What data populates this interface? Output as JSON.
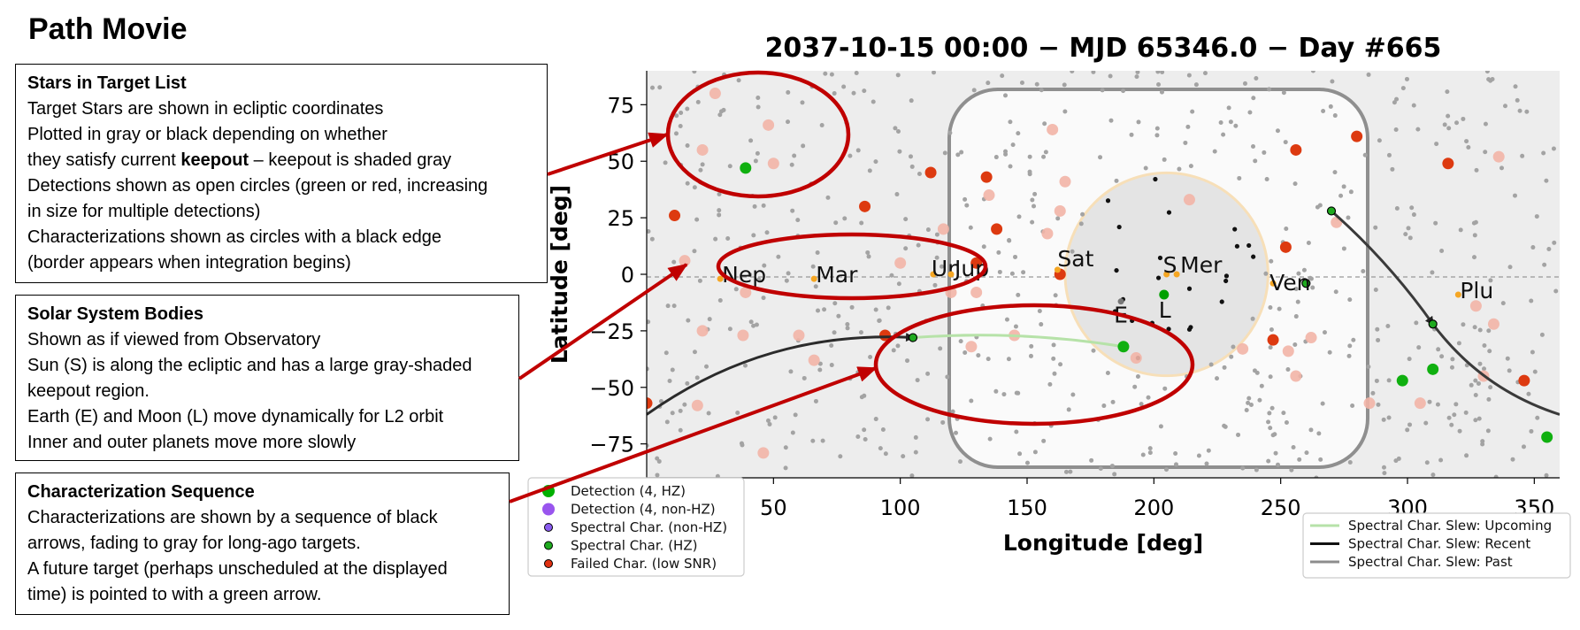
{
  "page": {
    "title": "Path Movie"
  },
  "callouts": {
    "stars": {
      "heading": "Stars in Target List",
      "line1": "Target Stars are shown in ecliptic coordinates",
      "line2": "Plotted in gray or black depending on whether",
      "line3_pre": "they satisfy current ",
      "line3_bold": "keepout",
      "line3_post": " – keepout is shaded gray",
      "line4": "Detections shown as open circles (green or red, increasing",
      "line5": "in size for multiple detections)",
      "line6": "Characterizations shown as circles with a black edge",
      "line7": "(border appears when integration begins)"
    },
    "solar": {
      "heading": "Solar System Bodies",
      "line1": "Shown as if viewed from Observatory",
      "line2": "Sun (S) is along the ecliptic and has a large gray-shaded",
      "line3": "keepout region.",
      "line4": "Earth (E) and Moon (L) move dynamically for L2 orbit",
      "line5": "Inner and outer planets move more slowly"
    },
    "sequence": {
      "heading": "Characterization Sequence",
      "line1": "Characterizations are shown by a sequence of black",
      "line2": "arrows, fading to gray for long-ago targets.",
      "line3": "A future target (perhaps unscheduled at the displayed",
      "line4": "time) is pointed to with a green arrow."
    }
  },
  "chart_data": {
    "type": "scatter",
    "title": "2037-10-15 00:00 − MJD 65346.0 − Day #665",
    "xlabel": "Longitude [deg]",
    "ylabel": "Latitude [deg]",
    "xlim": [
      0,
      360
    ],
    "ylim": [
      -90,
      90
    ],
    "xticks": [
      50,
      100,
      150,
      200,
      250,
      300,
      350
    ],
    "yticks": [
      75,
      50,
      25,
      0,
      -25,
      -50,
      -75
    ],
    "grid": false,
    "sun_keepout": {
      "center": [
        205,
        0
      ],
      "radius_deg": 40
    },
    "solar_bodies": [
      {
        "label": "Nep",
        "lon": 29,
        "lat": -2,
        "color": "#f5a623"
      },
      {
        "label": "Mar",
        "lon": 66,
        "lat": -2,
        "color": "#f5a623"
      },
      {
        "label": "Ur",
        "lon": 113,
        "lat": 0,
        "color": "#f5a623"
      },
      {
        "label": "Jup",
        "lon": 120,
        "lat": 0,
        "color": "#f5a623"
      },
      {
        "label": "Sat",
        "lon": 162,
        "lat": 2,
        "color": "#f5a623"
      },
      {
        "label": "S",
        "lon": 205,
        "lat": 0,
        "color": "#f5a623"
      },
      {
        "label": "Mer",
        "lon": 209,
        "lat": 0,
        "color": "#f5a623"
      },
      {
        "label": "Ven",
        "lon": 247,
        "lat": -4,
        "color": "#f5a623"
      },
      {
        "label": "Plu",
        "lon": 320,
        "lat": -9,
        "color": "#f5a623"
      },
      {
        "label": "E",
        "lon": 187,
        "lat": -12,
        "color": "#777777"
      },
      {
        "label": "L",
        "lon": 204,
        "lat": -9,
        "color": "#00a000"
      }
    ],
    "characterized_stars": [
      {
        "lon": 39,
        "lat": 47,
        "type": "Detection (4, HZ)"
      },
      {
        "lon": 188,
        "lat": -32,
        "type": "Detection (4, HZ)"
      },
      {
        "lon": 105,
        "lat": -28,
        "type": "Spectral Char. (HZ)"
      },
      {
        "lon": 270,
        "lat": 28,
        "type": "Spectral Char. (HZ)"
      },
      {
        "lon": 310,
        "lat": -22,
        "type": "Spectral Char. (HZ)"
      },
      {
        "lon": 298,
        "lat": -47,
        "type": "Detection (4, HZ)"
      },
      {
        "lon": 310,
        "lat": -42,
        "type": "Detection (4, HZ)"
      },
      {
        "lon": 355,
        "lat": -72,
        "type": "Detection (4, HZ)"
      },
      {
        "lon": 260,
        "lat": -4,
        "type": "Spectral Char. (HZ)"
      }
    ],
    "failed_chars": [
      [
        11,
        26
      ],
      [
        86,
        30
      ],
      [
        112,
        45
      ],
      [
        134,
        43
      ],
      [
        138,
        20
      ],
      [
        163,
        0
      ],
      [
        130,
        5
      ],
      [
        247,
        -29
      ],
      [
        252,
        12
      ],
      [
        256,
        55
      ],
      [
        280,
        61
      ],
      [
        316,
        49
      ],
      [
        346,
        -47
      ],
      [
        0,
        -57
      ],
      [
        94,
        -27
      ]
    ],
    "detections_faint": [
      [
        27,
        80
      ],
      [
        48,
        66
      ],
      [
        50,
        49
      ],
      [
        22,
        55
      ],
      [
        15,
        6
      ],
      [
        39,
        -8
      ],
      [
        22,
        -25
      ],
      [
        38,
        -27
      ],
      [
        60,
        -27
      ],
      [
        66,
        -38
      ],
      [
        20,
        -58
      ],
      [
        46,
        -79
      ],
      [
        117,
        20
      ],
      [
        120,
        -8
      ],
      [
        130,
        -8
      ],
      [
        145,
        -27
      ],
      [
        128,
        -32
      ],
      [
        158,
        18
      ],
      [
        163,
        28
      ],
      [
        165,
        41
      ],
      [
        160,
        64
      ],
      [
        135,
        35
      ],
      [
        193,
        -37
      ],
      [
        214,
        33
      ],
      [
        253,
        -34
      ],
      [
        256,
        -45
      ],
      [
        262,
        -28
      ],
      [
        285,
        -57
      ],
      [
        305,
        -57
      ],
      [
        336,
        52
      ],
      [
        330,
        -45
      ],
      [
        334,
        -22
      ],
      [
        327,
        -14
      ],
      [
        272,
        23
      ],
      [
        235,
        -33
      ],
      [
        100,
        5
      ]
    ],
    "slew_upcoming": {
      "from": [
        105,
        -28
      ],
      "to": [
        188,
        -32
      ]
    },
    "slew_recent": [
      {
        "from": [
          0,
          -62
        ],
        "to": [
          105,
          -28
        ]
      },
      {
        "from": [
          270,
          28
        ],
        "to": [
          310,
          -22
        ]
      },
      {
        "from": [
          310,
          -22
        ],
        "to": [
          360,
          -62
        ]
      }
    ],
    "legend_left": [
      {
        "label": "Detection (4, HZ)",
        "color": "#00b000",
        "size": "large"
      },
      {
        "label": "Detection (4, non-HZ)",
        "color": "#9955ee",
        "size": "large"
      },
      {
        "label": "Spectral Char. (non-HZ)",
        "color": "#8a5cf0",
        "size": "small"
      },
      {
        "label": "Spectral Char. (HZ)",
        "color": "#1faa1f",
        "size": "small"
      },
      {
        "label": "Failed Char. (low SNR)",
        "color": "#e03010",
        "size": "small"
      }
    ],
    "legend_right": [
      {
        "label": "Spectral Char. Slew: Upcoming",
        "color": "#b6e2a8"
      },
      {
        "label": "Spectral Char. Slew: Recent",
        "color": "#111111"
      },
      {
        "label": "Spectral Char. Slew: Past",
        "color": "#8c8c8c"
      }
    ]
  }
}
